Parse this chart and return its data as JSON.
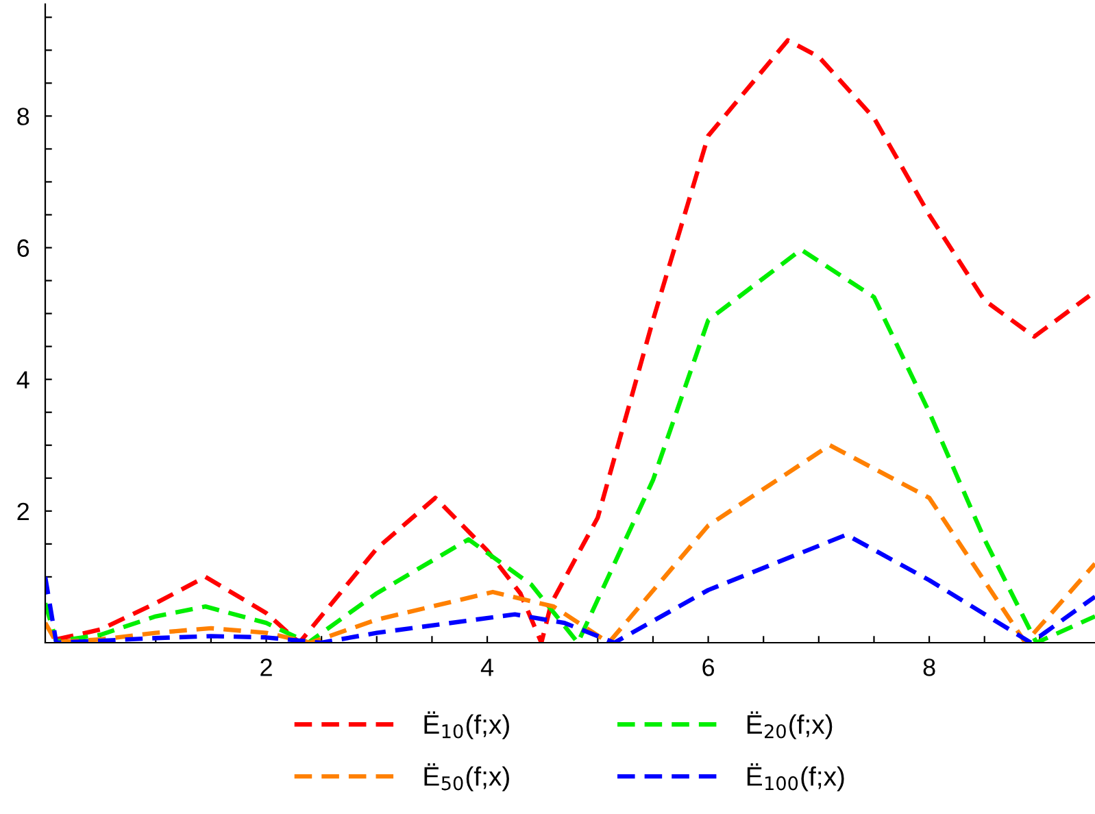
{
  "chart_data": {
    "type": "line",
    "line_style": "dashed",
    "marker": "none",
    "grid": false,
    "legend": "bottom",
    "xlim": [
      0,
      9.5
    ],
    "ylim": [
      0,
      9.7
    ],
    "xticks": [
      {
        "value": 0.5,
        "label": null
      },
      {
        "value": 1,
        "label": null
      },
      {
        "value": 1.5,
        "label": null
      },
      2,
      {
        "value": 2.5,
        "label": null
      },
      {
        "value": 3,
        "label": null
      },
      {
        "value": 3.5,
        "label": null
      },
      4,
      {
        "value": 4.5,
        "label": null
      },
      {
        "value": 5,
        "label": null
      },
      {
        "value": 5.5,
        "label": null
      },
      6,
      {
        "value": 6.5,
        "label": null
      },
      {
        "value": 7,
        "label": null
      },
      {
        "value": 7.5,
        "label": null
      },
      8,
      {
        "value": 8.5,
        "label": null
      },
      {
        "value": 9,
        "label": null
      }
    ],
    "yticks": [
      {
        "value": 0.5,
        "label": null
      },
      {
        "value": 1,
        "label": null
      },
      {
        "value": 1.5,
        "label": null
      },
      2,
      {
        "value": 2.5,
        "label": null
      },
      {
        "value": 3,
        "label": null
      },
      {
        "value": 3.5,
        "label": null
      },
      4,
      {
        "value": 4.5,
        "label": null
      },
      {
        "value": 5,
        "label": null
      },
      {
        "value": 5.5,
        "label": null
      },
      6,
      {
        "value": 6.5,
        "label": null
      },
      {
        "value": 7,
        "label": null
      },
      {
        "value": 7.5,
        "label": null
      },
      8,
      {
        "value": 8.5,
        "label": null
      },
      {
        "value": 9,
        "label": null
      },
      {
        "value": 9.5,
        "label": null
      }
    ],
    "series": [
      {
        "name": "Ë$_{10}$(f;x)",
        "color": "#ff0000",
        "x": [
          0.1,
          0.5,
          1,
          1.45,
          2,
          2.3,
          3,
          3.53,
          4,
          4.3,
          4.49,
          4.58,
          5,
          5.5,
          6,
          6.72,
          7,
          7.5,
          8,
          8.5,
          8.95,
          9.45
        ],
        "values": [
          0.05,
          0.2,
          0.6,
          1.0,
          0.45,
          0,
          1.43,
          2.2,
          1.4,
          0.75,
          0,
          0.6,
          1.9,
          4.9,
          7.7,
          9.15,
          8.9,
          7.97,
          6.5,
          5.2,
          4.65,
          5.27
        ]
      },
      {
        "name": "Ë$_{20}$(f;x)",
        "color": "#00ee00",
        "x": [
          0,
          0.1,
          0.5,
          1,
          1.45,
          2,
          2.38,
          3,
          3.83,
          4.4,
          4.82,
          5.5,
          6,
          6.84,
          7.5,
          8,
          8.5,
          8.97,
          9.5
        ],
        "values": [
          0.6,
          0.02,
          0.12,
          0.4,
          0.55,
          0.3,
          0,
          0.75,
          1.57,
          0.88,
          0,
          2.47,
          4.9,
          5.97,
          5.25,
          3.5,
          1.57,
          0,
          0.4
        ]
      },
      {
        "name": "Ë$_{50}$(f;x)",
        "color": "#ff8000",
        "x": [
          0,
          0.1,
          0.5,
          1,
          1.5,
          2,
          2.4,
          3,
          4.05,
          4.6,
          5.1,
          6,
          7.1,
          8,
          8.87,
          9.5
        ],
        "values": [
          0.3,
          0.01,
          0.05,
          0.15,
          0.22,
          0.15,
          0,
          0.35,
          0.77,
          0.55,
          0,
          1.78,
          3.0,
          2.2,
          0,
          1.2
        ]
      },
      {
        "name": "Ë$_{100}$(f;x)",
        "color": "#0000ff",
        "x": [
          0,
          0.1,
          0.5,
          1,
          1.5,
          2,
          2.5,
          3,
          4.25,
          4.7,
          5.15,
          6,
          7.25,
          8,
          8.92,
          9.5
        ],
        "values": [
          1.0,
          0.0,
          0.03,
          0.07,
          0.1,
          0.08,
          0,
          0.15,
          0.43,
          0.3,
          0,
          0.8,
          1.64,
          0.95,
          0,
          0.7
        ]
      }
    ]
  }
}
